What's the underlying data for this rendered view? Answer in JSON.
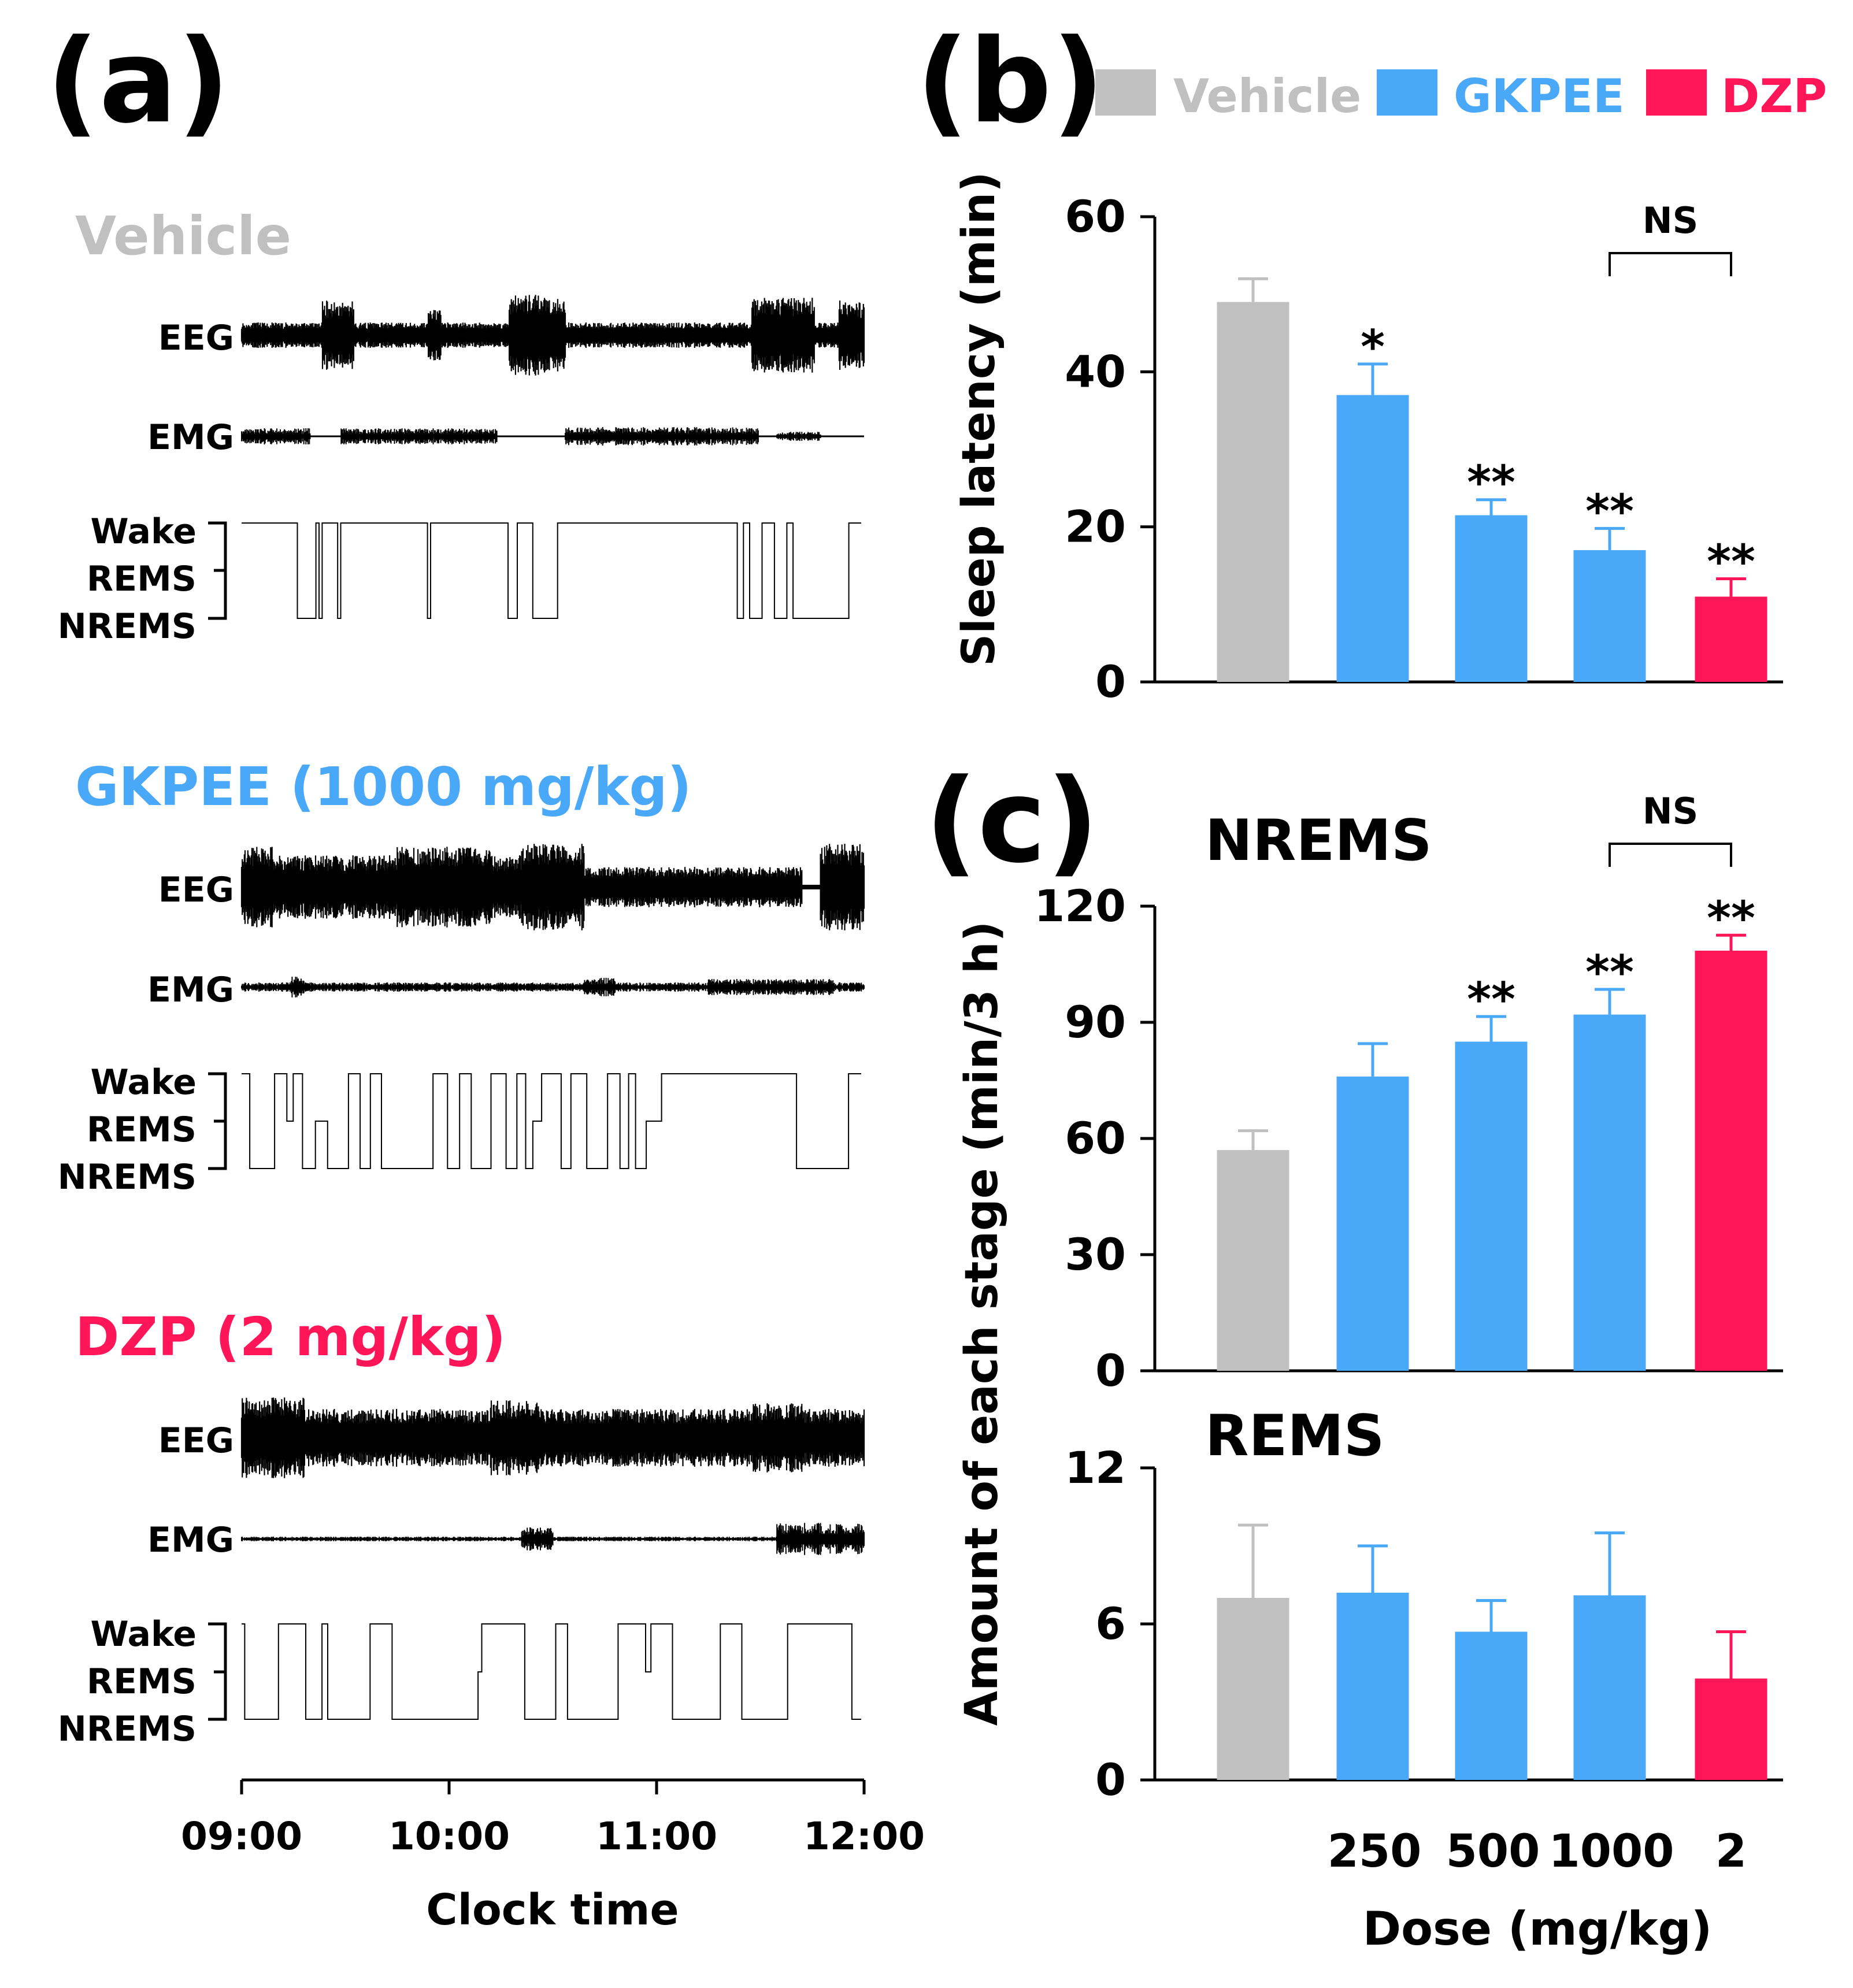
{
  "panels": {
    "a": "(a)",
    "b": "(b)",
    "c": "(c)"
  },
  "colors": {
    "vehicle": "#c0c0c0",
    "gkpee": "#4aa8f8",
    "dzp": "#ff1658",
    "trace": "#000000"
  },
  "legend": [
    {
      "label": "Vehicle",
      "color": "#c0c0c0"
    },
    {
      "label": "GKPEE",
      "color": "#4aa8f8"
    },
    {
      "label": "DZP",
      "color": "#ff1658"
    }
  ],
  "traces": {
    "groups": [
      {
        "title": "Vehicle",
        "color": "#c0c0c0"
      },
      {
        "title": "GKPEE (1000 mg/kg)",
        "color": "#4aa8f8"
      },
      {
        "title": "DZP (2 mg/kg)",
        "color": "#ff1658"
      }
    ],
    "eeg_label": "EEG",
    "emg_label": "EMG",
    "stage_labels": [
      "Wake",
      "REMS",
      "NREMS"
    ],
    "time_ticks": [
      "09:00",
      "10:00",
      "11:00",
      "12:00"
    ],
    "xlabel": "Clock time"
  },
  "chart_data": [
    {
      "type": "bar",
      "id": "sleep-latency",
      "title": "",
      "ylabel": "Sleep latency (min)",
      "categories": [
        "Vehicle",
        "250",
        "500",
        "1000",
        "2"
      ],
      "values": [
        49,
        37,
        21.5,
        17,
        11
      ],
      "errors": [
        3,
        4,
        2,
        2.8,
        2.3
      ],
      "bar_groups": [
        "vehicle",
        "gkpee",
        "gkpee",
        "gkpee",
        "dzp"
      ],
      "significance": [
        "",
        "*",
        "**",
        "**",
        "**"
      ],
      "bracket": {
        "label": "NS",
        "from": 3,
        "to": 4
      },
      "ylim": [
        0,
        60
      ],
      "yticks": [
        "0",
        "20",
        "40",
        "60"
      ]
    },
    {
      "type": "bar",
      "id": "nrems-amount",
      "title": "NREMS",
      "ylabel": "Amount of each stage (min/3 h)",
      "categories": [
        "Vehicle",
        "250",
        "500",
        "1000",
        "2"
      ],
      "values": [
        57,
        76,
        85,
        92,
        108.5
      ],
      "errors": [
        5,
        8.5,
        6.5,
        6.5,
        4
      ],
      "bar_groups": [
        "vehicle",
        "gkpee",
        "gkpee",
        "gkpee",
        "dzp"
      ],
      "significance": [
        "",
        "",
        "**",
        "**",
        "**"
      ],
      "bracket": {
        "label": "NS",
        "from": 3,
        "to": 4
      },
      "ylim": [
        0,
        120
      ],
      "yticks": [
        "0",
        "30",
        "60",
        "90",
        "120"
      ]
    },
    {
      "type": "bar",
      "id": "rems-amount",
      "title": "REMS",
      "ylabel": "",
      "categories": [
        "Vehicle",
        "250",
        "500",
        "1000",
        "2"
      ],
      "values": [
        7,
        7.2,
        5.7,
        7.1,
        3.9
      ],
      "errors": [
        2.8,
        1.8,
        1.2,
        2.4,
        1.8
      ],
      "bar_groups": [
        "vehicle",
        "gkpee",
        "gkpee",
        "gkpee",
        "dzp"
      ],
      "significance": [
        "",
        "",
        "",
        "",
        ""
      ],
      "ylim": [
        0,
        12
      ],
      "yticks": [
        "0",
        "6",
        "12"
      ],
      "dose_labels": [
        "250",
        "500",
        "1000",
        "2"
      ],
      "xlabel": "Dose (mg/kg)"
    }
  ]
}
